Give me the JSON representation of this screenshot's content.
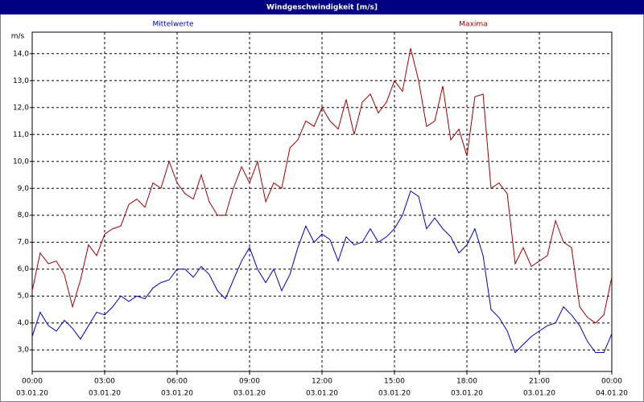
{
  "chart_data": {
    "type": "line",
    "title": "Windgeschwindigkeit [m/s]",
    "y_unit": "m/s",
    "x": [
      0,
      0.33,
      0.67,
      1,
      1.33,
      1.67,
      2,
      2.33,
      2.67,
      3,
      3.33,
      3.67,
      4,
      4.33,
      4.67,
      5,
      5.33,
      5.67,
      6,
      6.33,
      6.67,
      7,
      7.33,
      7.67,
      8,
      8.33,
      8.67,
      9,
      9.33,
      9.67,
      10,
      10.33,
      10.67,
      11,
      11.33,
      11.67,
      12,
      12.33,
      12.67,
      13,
      13.33,
      13.67,
      14,
      14.33,
      14.67,
      15,
      15.33,
      15.67,
      16,
      16.33,
      16.67,
      17,
      17.33,
      17.67,
      18,
      18.33,
      18.67,
      19,
      19.33,
      19.67,
      20,
      20.33,
      20.67,
      21,
      21.33,
      21.67,
      22,
      22.33,
      22.67,
      23,
      23.33,
      23.67,
      24
    ],
    "series": [
      {
        "name": "Mittelwerte",
        "color": "#0000c0",
        "values": [
          3.5,
          4.4,
          3.9,
          3.7,
          4.1,
          3.8,
          3.4,
          3.9,
          4.4,
          4.3,
          4.6,
          5.0,
          4.8,
          5.0,
          4.9,
          5.3,
          5.5,
          5.6,
          6.0,
          6.0,
          5.7,
          6.1,
          5.8,
          5.2,
          4.9,
          5.6,
          6.3,
          6.8,
          6.0,
          5.5,
          6.0,
          5.2,
          5.8,
          6.8,
          7.6,
          7.0,
          7.3,
          7.1,
          6.3,
          7.2,
          6.9,
          7.0,
          7.5,
          7.0,
          7.2,
          7.5,
          8.0,
          8.9,
          8.7,
          7.5,
          7.9,
          7.5,
          7.2,
          6.6,
          6.9,
          7.5,
          6.5,
          4.5,
          4.2,
          3.7,
          2.9,
          3.2,
          3.5,
          3.7,
          3.9,
          4.0,
          4.6,
          4.3,
          3.9,
          3.3,
          2.9,
          2.9,
          3.6
        ]
      },
      {
        "name": "Maxima",
        "color": "#a00000",
        "values": [
          5.2,
          6.6,
          6.2,
          6.3,
          5.8,
          4.6,
          5.6,
          6.9,
          6.5,
          7.3,
          7.5,
          7.6,
          8.4,
          8.6,
          8.3,
          9.2,
          9.0,
          10.0,
          9.2,
          8.8,
          8.6,
          9.5,
          8.5,
          8.0,
          8.0,
          9.0,
          9.8,
          9.2,
          10.0,
          8.5,
          9.2,
          9.0,
          10.5,
          10.8,
          11.5,
          11.3,
          12.0,
          11.5,
          11.2,
          12.3,
          11.0,
          12.2,
          12.5,
          11.8,
          12.2,
          13.0,
          12.6,
          14.2,
          13.0,
          11.3,
          11.5,
          12.8,
          10.8,
          11.2,
          10.2,
          12.4,
          12.5,
          9.0,
          9.2,
          8.8,
          6.2,
          6.8,
          6.1,
          6.3,
          6.5,
          7.8,
          7.0,
          6.8,
          4.6,
          4.2,
          4.0,
          4.3,
          5.7
        ]
      }
    ],
    "xlim": [
      0,
      24
    ],
    "xticks": [
      {
        "value": 0,
        "label": "00:00",
        "date": "03.01.20"
      },
      {
        "value": 3,
        "label": "03:00",
        "date": "03.01.20"
      },
      {
        "value": 6,
        "label": "06:00",
        "date": "03.01.20"
      },
      {
        "value": 9,
        "label": "09:00",
        "date": "03.01.20"
      },
      {
        "value": 12,
        "label": "12:00",
        "date": "03.01.20"
      },
      {
        "value": 15,
        "label": "15:00",
        "date": "03.01.20"
      },
      {
        "value": 18,
        "label": "18:00",
        "date": "03.01.20"
      },
      {
        "value": 21,
        "label": "21:00",
        "date": "03.01.20"
      },
      {
        "value": 24,
        "label": "00:00",
        "date": "04.01.20"
      }
    ],
    "ylim": [
      2.2,
      14.8
    ],
    "yticks": [
      {
        "value": 3,
        "label": "3,0"
      },
      {
        "value": 4,
        "label": "4,0"
      },
      {
        "value": 5,
        "label": "5,0"
      },
      {
        "value": 6,
        "label": "6,0"
      },
      {
        "value": 7,
        "label": "7,0"
      },
      {
        "value": 8,
        "label": "8,0"
      },
      {
        "value": 9,
        "label": "9,0"
      },
      {
        "value": 10,
        "label": "10,0"
      },
      {
        "value": 11,
        "label": "11,0"
      },
      {
        "value": 12,
        "label": "12,0"
      },
      {
        "value": 13,
        "label": "13,0"
      },
      {
        "value": 14,
        "label": "14,0"
      }
    ],
    "grid": true
  }
}
